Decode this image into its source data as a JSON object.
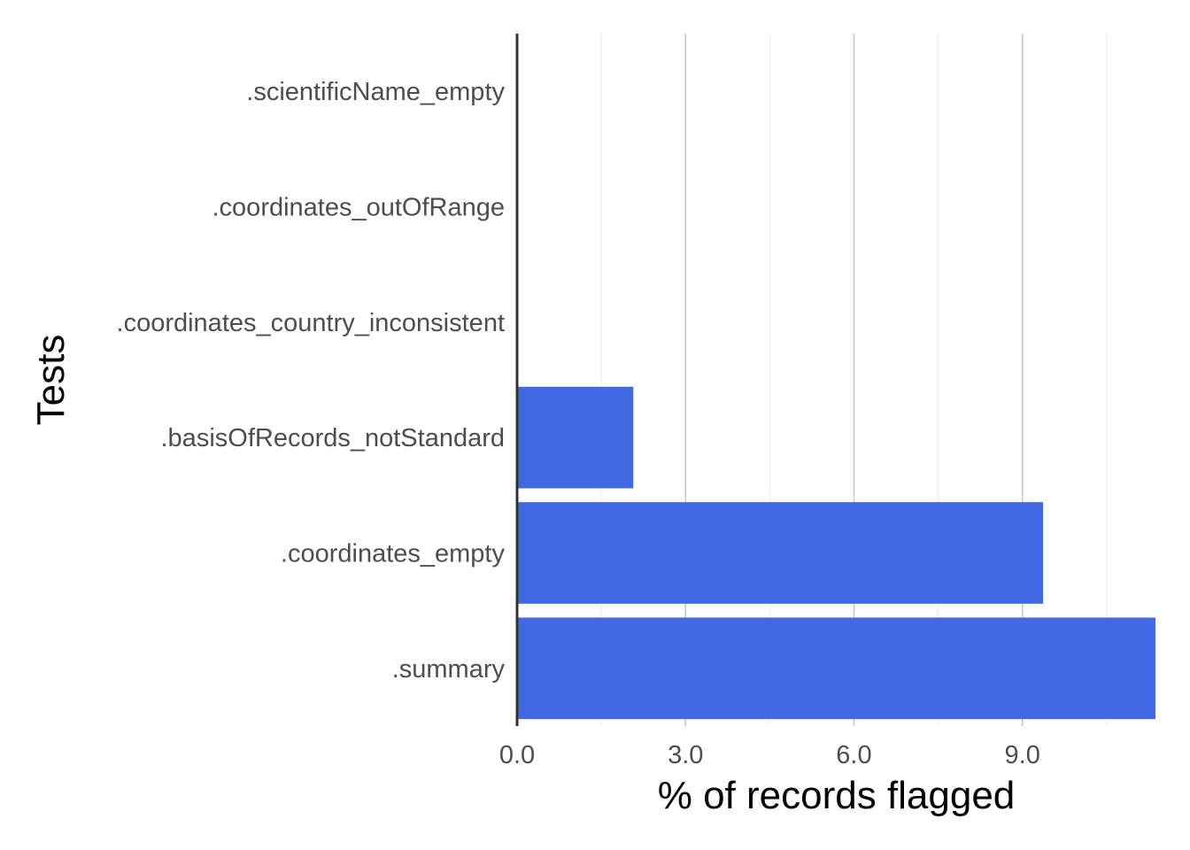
{
  "chart_data": {
    "type": "bar",
    "orientation": "horizontal",
    "categories": [
      ".scientificName_empty",
      ".coordinates_outOfRange",
      ".coordinates_country_inconsistent",
      ".basisOfRecords_notStandard",
      ".coordinates_empty",
      ".summary"
    ],
    "values": [
      0,
      0,
      0,
      2.07,
      9.37,
      11.37
    ],
    "xlabel": "% of records flagged",
    "ylabel": "Tests",
    "xlim": [
      0,
      11.37
    ],
    "xticks": [
      0,
      3,
      6,
      9
    ],
    "xtick_labels": [
      "0.0",
      "3.0",
      "6.0",
      "9.0"
    ],
    "bar_color": "#4169E1",
    "grid": "vertical major and minor",
    "legend": "none"
  }
}
